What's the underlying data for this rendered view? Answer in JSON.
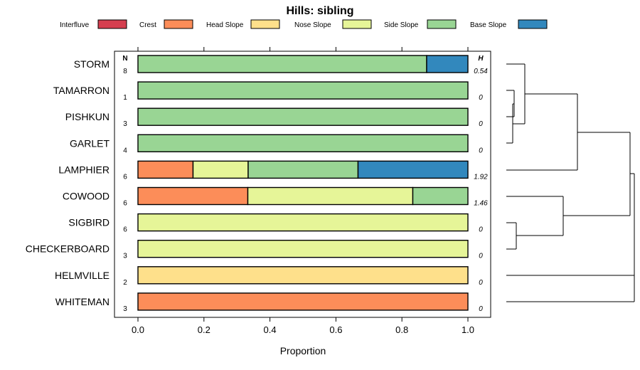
{
  "chart_data": {
    "type": "bar",
    "orientation": "horizontal-stacked",
    "title": "Hills: sibling",
    "xlabel": "Proportion",
    "xlim": [
      0,
      1
    ],
    "x_ticks": [
      0,
      0.2,
      0.4,
      0.6,
      0.8,
      1
    ],
    "x_tick_labels": [
      "0.0",
      "0.2",
      "0.4",
      "0.6",
      "0.8",
      "1.0"
    ],
    "n_header": "N",
    "h_header": "H",
    "legend_position": "top",
    "legend": [
      {
        "name": "Interfluve",
        "color": "#d53e4f"
      },
      {
        "name": "Crest",
        "color": "#fc8d59"
      },
      {
        "name": "Head Slope",
        "color": "#fee08b"
      },
      {
        "name": "Nose Slope",
        "color": "#e6f598"
      },
      {
        "name": "Side Slope",
        "color": "#99d594"
      },
      {
        "name": "Base Slope",
        "color": "#3288bd"
      }
    ],
    "categories": [
      "STORM",
      "TAMARRON",
      "PISHKUN",
      "GARLET",
      "LAMPHIER",
      "COWOOD",
      "SIGBIRD",
      "CHECKERBOARD",
      "HELMVILLE",
      "WHITEMAN"
    ],
    "n_values": [
      "8",
      "1",
      "3",
      "4",
      "6",
      "6",
      "6",
      "3",
      "2",
      "3"
    ],
    "h_values": [
      "0.54",
      "0",
      "0",
      "0",
      "1.92",
      "1.46",
      "0",
      "0",
      "0",
      "0"
    ],
    "series": [
      {
        "name": "Interfluve",
        "values": [
          0,
          0,
          0,
          0,
          0,
          0,
          0,
          0,
          0,
          0
        ]
      },
      {
        "name": "Crest",
        "values": [
          0,
          0,
          0,
          0,
          0.167,
          0.333,
          0,
          0,
          0,
          1
        ]
      },
      {
        "name": "Head Slope",
        "values": [
          0,
          0,
          0,
          0,
          0,
          0,
          0,
          0,
          1,
          0
        ]
      },
      {
        "name": "Nose Slope",
        "values": [
          0,
          0,
          0,
          0,
          0.167,
          0.5,
          1,
          1,
          0,
          0
        ]
      },
      {
        "name": "Side Slope",
        "values": [
          0.875,
          1,
          1,
          1,
          0.333,
          0.167,
          0,
          0,
          0,
          0
        ]
      },
      {
        "name": "Base Slope",
        "values": [
          0.125,
          0,
          0,
          0,
          0.333,
          0,
          0,
          0,
          0,
          0
        ]
      }
    ]
  }
}
